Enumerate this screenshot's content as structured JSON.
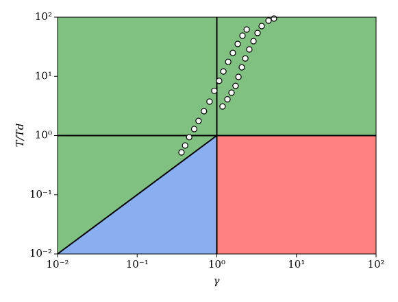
{
  "chart_data": {
    "type": "scatter",
    "log_x": true,
    "log_y": true,
    "xlabel": "γ",
    "ylabel": "T/Td",
    "xlim": [
      0.01,
      100
    ],
    "ylim": [
      0.01,
      100
    ],
    "xticks": [
      {
        "value": 0.01,
        "label": "10⁻²"
      },
      {
        "value": 0.1,
        "label": "10⁻¹"
      },
      {
        "value": 1,
        "label": "10⁰"
      },
      {
        "value": 10,
        "label": "10¹"
      },
      {
        "value": 100,
        "label": "10²"
      }
    ],
    "yticks": [
      {
        "value": 0.01,
        "label": "10⁻²"
      },
      {
        "value": 0.1,
        "label": "10⁻¹"
      },
      {
        "value": 1,
        "label": "10⁰"
      },
      {
        "value": 10,
        "label": "10¹"
      },
      {
        "value": 100,
        "label": "10²"
      }
    ],
    "region_colors": [
      "#80c080",
      "#8aaff0",
      "#ff8080"
    ],
    "series": [
      {
        "color": "#ffffff",
        "x": [
          0.36,
          0.4,
          0.45,
          0.52,
          0.59,
          0.69,
          0.81,
          0.93,
          1.07,
          1.21,
          1.39,
          1.59,
          1.83,
          2.1,
          2.37,
          1.18,
          1.36,
          1.53,
          1.72,
          1.87,
          2.06,
          2.28,
          2.56,
          2.89,
          3.25,
          3.66,
          4.46,
          5.22
        ],
        "values": [
          0.52,
          0.68,
          0.94,
          1.29,
          1.77,
          2.58,
          3.75,
          5.7,
          8.4,
          12.1,
          17.6,
          24.9,
          35.3,
          48.7,
          61.8,
          3.1,
          4.1,
          5.3,
          6.9,
          9.8,
          14.2,
          20.1,
          28.5,
          39.3,
          54.1,
          70.7,
          87.5,
          94.8
        ]
      }
    ]
  }
}
